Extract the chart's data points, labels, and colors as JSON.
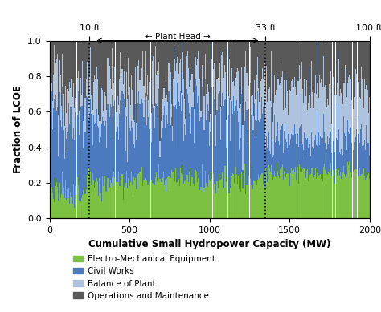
{
  "xlabel": "Cumulative Small Hydropower Capacity (MW)",
  "ylabel": "Fraction of LCOE",
  "xlim": [
    0,
    2000
  ],
  "ylim": [
    0.0,
    1.0
  ],
  "vline1_x": 250,
  "vline2_x": 1350,
  "colors": {
    "electro": "#7dc142",
    "civil": "#4c7abf",
    "balance": "#adc3df",
    "om": "#595959"
  },
  "legend": [
    "Electro-Mechanical Equipment",
    "Civil Works",
    "Balance of Plant",
    "Operations and Maintenance"
  ],
  "background_color": "#ffffff",
  "dpi": 100,
  "figsize": [
    4.74,
    3.89
  ]
}
